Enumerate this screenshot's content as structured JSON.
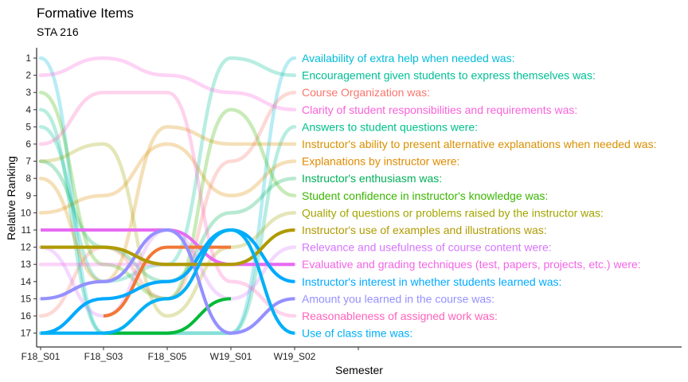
{
  "chart_data": {
    "type": "line",
    "title": "Formative Items",
    "subtitle": "STA 216",
    "xlabel": "Semester",
    "ylabel": "Relative Ranking",
    "categories": [
      "F18_S01",
      "F18_S03",
      "F18_S05",
      "W19_S01",
      "W19_S02"
    ],
    "y_ticks": [
      1,
      2,
      3,
      4,
      5,
      6,
      7,
      8,
      9,
      10,
      11,
      12,
      13,
      14,
      15,
      16,
      17
    ],
    "ylim": [
      17,
      1
    ],
    "legend": "direct labels at right",
    "grid": false,
    "highlighted_semesters": [
      "F18_S01",
      "F18_S03",
      "F18_S05",
      "W19_S01"
    ],
    "series": [
      {
        "name": "Availability of extra help when needed was:",
        "color": "#00BCD8",
        "values": [
          1,
          17,
          17,
          17,
          1
        ]
      },
      {
        "name": "Encouragement given students to express themselves was:",
        "color": "#00BF96",
        "values": [
          5,
          14,
          13,
          1,
          2
        ]
      },
      {
        "name": "Course Organization was:",
        "color": "#F8766D",
        "values": [
          16,
          12,
          15,
          7,
          3
        ]
      },
      {
        "name": "Clarity of student responsibilities and requirements was:",
        "color": "#FA62DB",
        "values": [
          2,
          1,
          2,
          3,
          4
        ]
      },
      {
        "name": "Answers to student questions were:",
        "color": "#00C08B",
        "values": [
          4,
          17,
          17,
          17,
          5
        ]
      },
      {
        "name": "Instructor's ability to present alternative explanations when needed was:",
        "color": "#D89000",
        "values": [
          8,
          14,
          5,
          6,
          6
        ]
      },
      {
        "name": "Explanations by instructor were:",
        "color": "#E08B00",
        "values": [
          10,
          9,
          6,
          9,
          7
        ]
      },
      {
        "name": "Instructor's enthusiasm was:",
        "color": "#00B159",
        "values": [
          7,
          12,
          14,
          10,
          8
        ]
      },
      {
        "name": "Student confidence in instructor's knowledge was:",
        "color": "#39B600",
        "values": [
          3,
          13,
          15,
          4,
          9
        ]
      },
      {
        "name": "Quality of questions or problems raised by the instructor was:",
        "color": "#A3A500",
        "values": [
          7,
          6,
          16,
          12,
          10
        ]
      },
      {
        "name": "Instructor's use of examples and illustrations was:",
        "color": "#B09A00",
        "values": [
          12,
          12,
          13,
          13,
          11
        ]
      },
      {
        "name": "Relevance and usefulness of course content were:",
        "color": "#D575FE",
        "values": [
          12,
          16,
          11,
          15,
          12
        ]
      },
      {
        "name": "Evaluative and grading techniques (test, papers, projects, etc.) were:",
        "color": "#F365E6",
        "values": [
          13,
          13,
          13,
          13,
          13
        ]
      },
      {
        "name": "Instructor's interest in whether students learned was:",
        "color": "#00A9FF",
        "values": [
          17,
          15,
          14,
          11,
          14
        ]
      },
      {
        "name": "Amount you learned in the course was:",
        "color": "#9590FF",
        "values": [
          15,
          14,
          11,
          17,
          15
        ]
      },
      {
        "name": "Reasonableness of assigned work was:",
        "color": "#FF62BC",
        "values": [
          6,
          3,
          3,
          14,
          16
        ]
      },
      {
        "name": "Use of class time was:",
        "color": "#00B0F6",
        "values": [
          17,
          17,
          15,
          11,
          17
        ]
      }
    ],
    "highlighted_series": [
      {
        "color": "#E76BF3",
        "values": [
          11,
          11,
          11,
          13,
          13
        ]
      },
      {
        "color": "#F37735",
        "values": [
          null,
          16,
          12,
          12,
          null
        ]
      },
      {
        "color": "#00BA38",
        "values": [
          null,
          17,
          17,
          15,
          null
        ]
      },
      {
        "color": "#00A9FF",
        "values": [
          17,
          15,
          14,
          11,
          14
        ]
      },
      {
        "color": "#9590FF",
        "values": [
          15,
          14,
          11,
          17,
          15
        ]
      },
      {
        "color": "#B09A00",
        "values": [
          12,
          12,
          13,
          13,
          11
        ]
      },
      {
        "color": "#00B0F6",
        "values": [
          17,
          17,
          15,
          11,
          17
        ]
      }
    ]
  }
}
